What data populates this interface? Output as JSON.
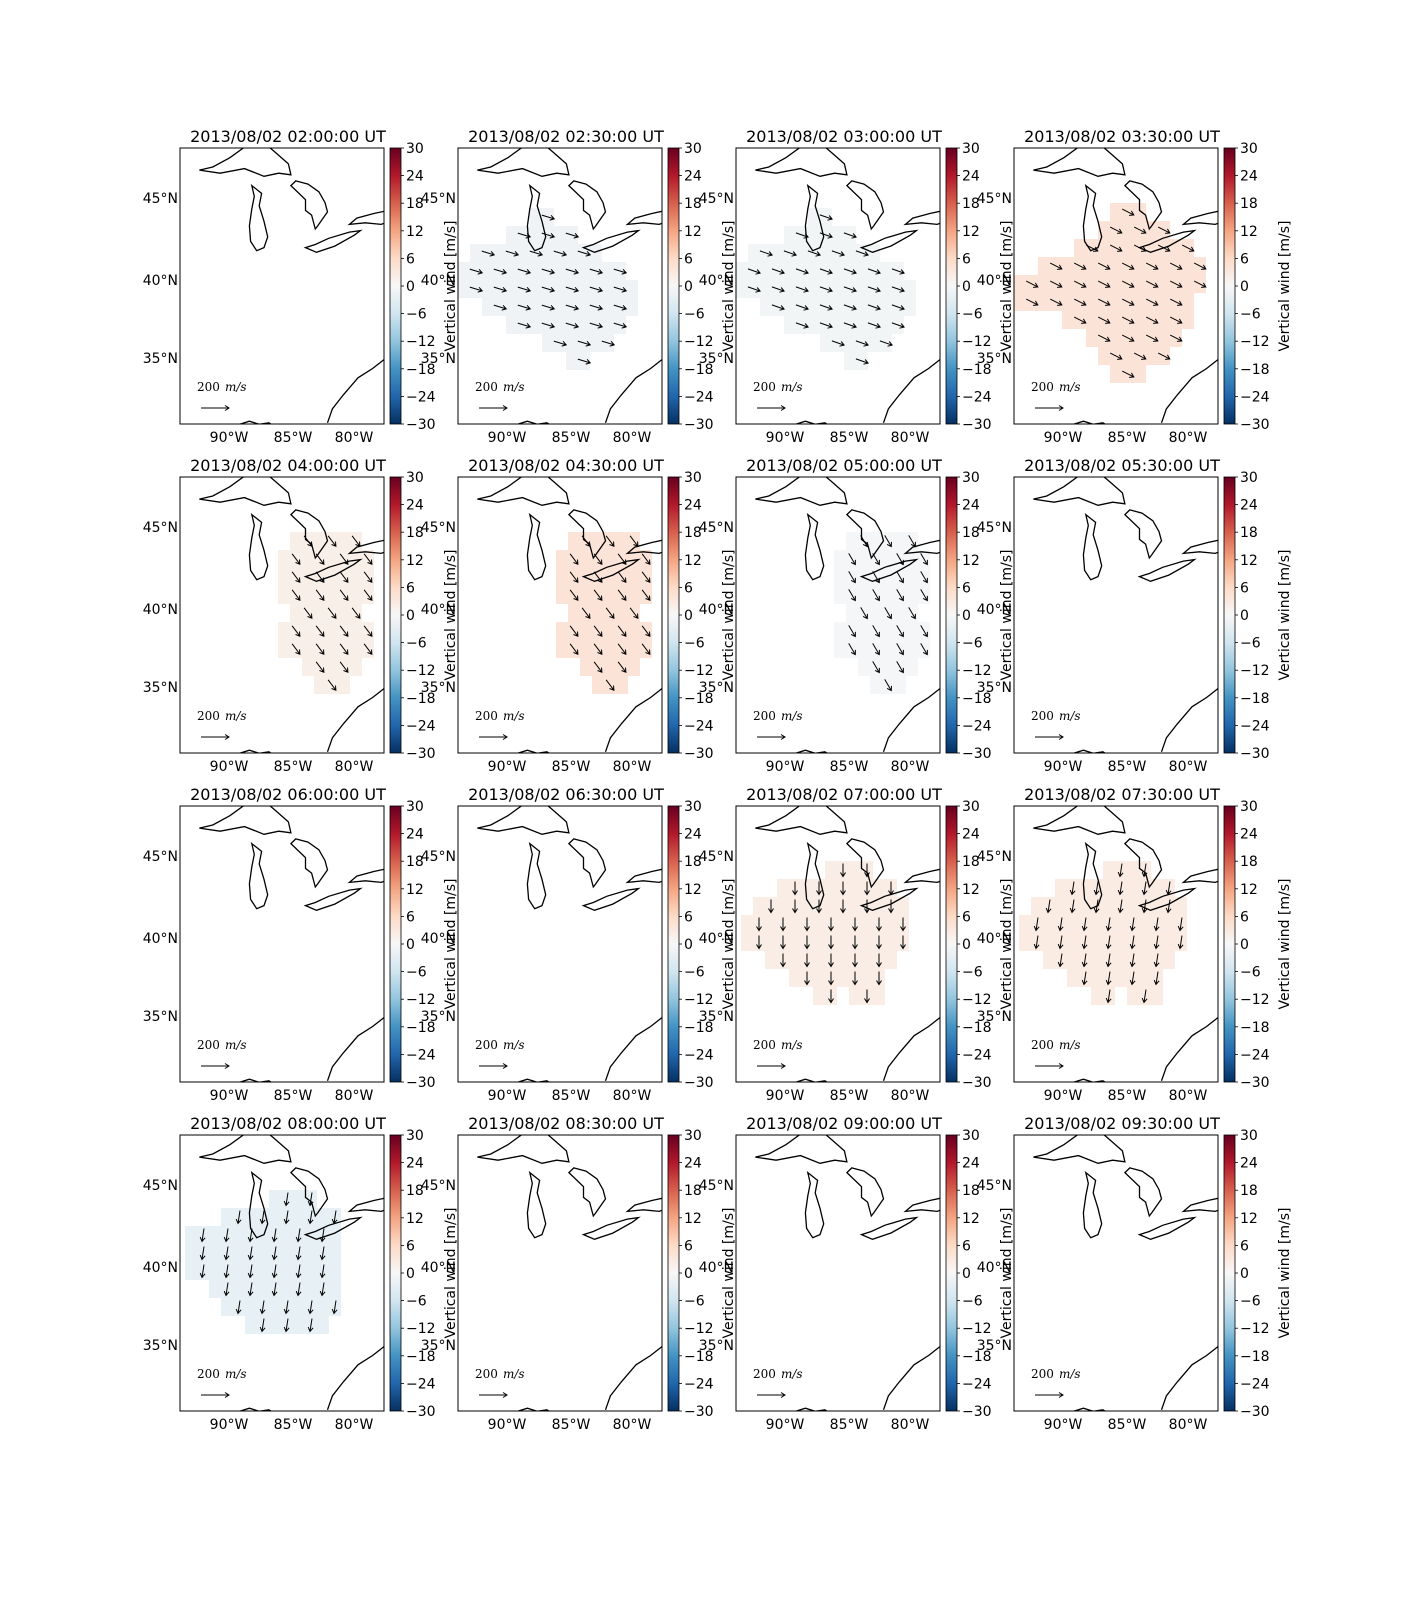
{
  "chart_data": {
    "type": "heatmap",
    "grid": {
      "rows": 4,
      "cols": 4
    },
    "map_ticks": {
      "lon": [
        "90°W",
        "85°W",
        "80°W"
      ],
      "lat": [
        "45°N",
        "40°N",
        "35°N"
      ]
    },
    "colorbar": {
      "label": "Vertical wind [m/s]",
      "ticks": [
        "30",
        "24",
        "18",
        "12",
        "6",
        "0",
        "−6",
        "−12",
        "−18",
        "−24",
        "−30"
      ],
      "range": [
        -30,
        30
      ],
      "colormap": "RdBu_r"
    },
    "quiver_key": {
      "value": "200",
      "units": "m/s"
    },
    "panels": [
      {
        "title": "2013/08/02 02:00:00 UT",
        "vertical_wind": 0,
        "wind_dir": null,
        "region": "none"
      },
      {
        "title": "2013/08/02 02:30:00 UT",
        "vertical_wind": -1.2,
        "wind_dir": [
          1,
          0.3
        ],
        "region": "west"
      },
      {
        "title": "2013/08/02 03:00:00 UT",
        "vertical_wind": -0.8,
        "wind_dir": [
          1,
          0.35
        ],
        "region": "west"
      },
      {
        "title": "2013/08/02 03:30:00 UT",
        "vertical_wind": 4.0,
        "wind_dir": [
          1,
          0.5
        ],
        "region": "large"
      },
      {
        "title": "2013/08/02 04:00:00 UT",
        "vertical_wind": 1.8,
        "wind_dir": [
          0.6,
          0.8
        ],
        "region": "central"
      },
      {
        "title": "2013/08/02 04:30:00 UT",
        "vertical_wind": 4.0,
        "wind_dir": [
          0.6,
          0.8
        ],
        "region": "central"
      },
      {
        "title": "2013/08/02 05:00:00 UT",
        "vertical_wind": -0.3,
        "wind_dir": [
          0.5,
          0.85
        ],
        "region": "central"
      },
      {
        "title": "2013/08/02 05:30:00 UT",
        "vertical_wind": 0,
        "wind_dir": null,
        "region": "none"
      },
      {
        "title": "2013/08/02 06:00:00 UT",
        "vertical_wind": 0,
        "wind_dir": null,
        "region": "none"
      },
      {
        "title": "2013/08/02 06:30:00 UT",
        "vertical_wind": 0,
        "wind_dir": null,
        "region": "none"
      },
      {
        "title": "2013/08/02 07:00:00 UT",
        "vertical_wind": 2.2,
        "wind_dir": [
          0,
          1
        ],
        "region": "upper"
      },
      {
        "title": "2013/08/02 07:30:00 UT",
        "vertical_wind": 2.5,
        "wind_dir": [
          -0.15,
          1
        ],
        "region": "upper"
      },
      {
        "title": "2013/08/02 08:00:00 UT",
        "vertical_wind": -2.5,
        "wind_dir": [
          -0.15,
          1
        ],
        "region": "westbox"
      },
      {
        "title": "2013/08/02 08:30:00 UT",
        "vertical_wind": 0,
        "wind_dir": null,
        "region": "none"
      },
      {
        "title": "2013/08/02 09:00:00 UT",
        "vertical_wind": 0,
        "wind_dir": null,
        "region": "none"
      },
      {
        "title": "2013/08/02 09:30:00 UT",
        "vertical_wind": 0,
        "wind_dir": null,
        "region": "none"
      }
    ]
  }
}
